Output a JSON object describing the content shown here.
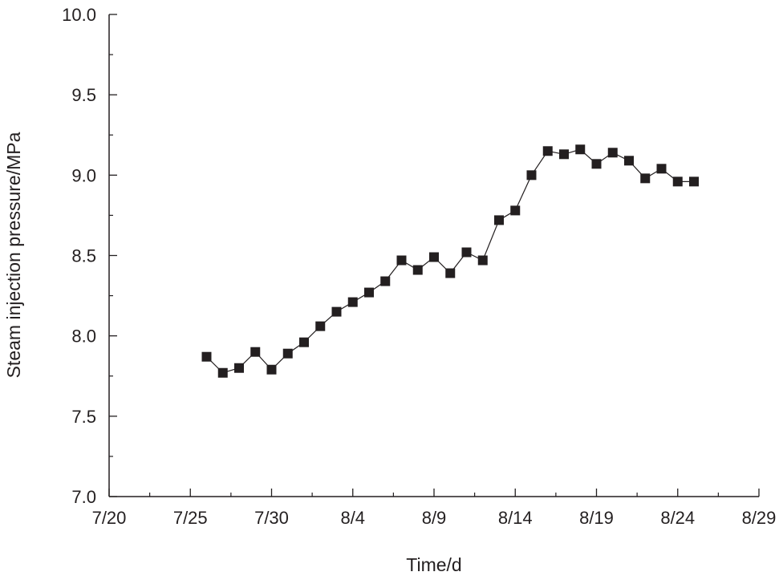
{
  "chart_data": {
    "type": "line",
    "title": "",
    "xlabel": "Time/d",
    "ylabel": "Steam injection pressure/MPa",
    "x_unit": "days since 7/20",
    "xlim": [
      0,
      40
    ],
    "ylim": [
      7.0,
      10.0
    ],
    "x_ticks": [
      {
        "value": 0,
        "label": "7/20"
      },
      {
        "value": 5,
        "label": "7/25"
      },
      {
        "value": 10,
        "label": "7/30"
      },
      {
        "value": 15,
        "label": "8/4"
      },
      {
        "value": 20,
        "label": "8/9"
      },
      {
        "value": 25,
        "label": "8/14"
      },
      {
        "value": 30,
        "label": "8/19"
      },
      {
        "value": 35,
        "label": "8/24"
      },
      {
        "value": 40,
        "label": "8/29"
      }
    ],
    "y_ticks": [
      {
        "value": 7.0,
        "label": "7.0"
      },
      {
        "value": 7.5,
        "label": "7.5"
      },
      {
        "value": 8.0,
        "label": "8.0"
      },
      {
        "value": 8.5,
        "label": "8.5"
      },
      {
        "value": 9.0,
        "label": "9.0"
      },
      {
        "value": 9.5,
        "label": "9.5"
      },
      {
        "value": 10.0,
        "label": "10.0"
      }
    ],
    "grid": false,
    "legend": "none",
    "series": [
      {
        "name": "Steam injection pressure",
        "marker": "square",
        "color": "#231f20",
        "x": [
          6,
          7,
          8,
          9,
          10,
          11,
          12,
          13,
          14,
          15,
          16,
          17,
          18,
          19,
          20,
          21,
          22,
          23,
          24,
          25,
          26,
          27,
          28,
          29,
          30,
          31,
          32,
          33,
          34,
          35,
          36
        ],
        "dates": [
          "7/26",
          "7/27",
          "7/28",
          "7/29",
          "7/30",
          "7/31",
          "8/1",
          "8/2",
          "8/3",
          "8/4",
          "8/5",
          "8/6",
          "8/7",
          "8/8",
          "8/9",
          "8/10",
          "8/11",
          "8/12",
          "8/13",
          "8/14",
          "8/15",
          "8/16",
          "8/17",
          "8/18",
          "8/19",
          "8/20",
          "8/21",
          "8/22",
          "8/23",
          "8/24",
          "8/25"
        ],
        "y": [
          7.87,
          7.77,
          7.8,
          7.9,
          7.79,
          7.89,
          7.96,
          8.06,
          8.15,
          8.21,
          8.27,
          8.34,
          8.47,
          8.41,
          8.49,
          8.39,
          8.52,
          8.47,
          8.72,
          8.78,
          9.0,
          9.15,
          9.13,
          9.16,
          9.07,
          9.14,
          9.09,
          8.98,
          9.04,
          8.96,
          8.96
        ]
      }
    ]
  }
}
